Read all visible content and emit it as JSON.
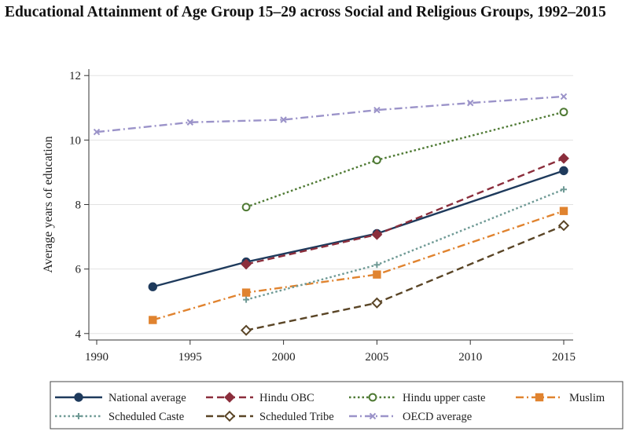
{
  "chart_data": {
    "type": "line",
    "title": "Educational Attainment of Age Group 15–29 across Social and Religious Groups, 1992–2015",
    "xlabel": "",
    "ylabel": "Average years of education",
    "xlim": [
      1990,
      2015
    ],
    "ylim": [
      3.8,
      12.2
    ],
    "xticks": [
      "1990",
      "1995",
      "2000",
      "2005",
      "2010",
      "2015"
    ],
    "yticks": [
      "4",
      "6",
      "8",
      "10",
      "12"
    ],
    "legend_position": "bottom",
    "series": [
      {
        "name": "National average",
        "color": "#1e3a5c",
        "marker": "circle-filled",
        "dash": "solid",
        "x": [
          1993,
          1998,
          2005,
          2015
        ],
        "y": [
          5.45,
          6.22,
          7.1,
          9.05
        ]
      },
      {
        "name": "Hindu OBC",
        "color": "#8b2e3c",
        "marker": "diamond-filled",
        "dash": "dashed",
        "x": [
          1998,
          2005,
          2015
        ],
        "y": [
          6.15,
          7.07,
          9.43
        ]
      },
      {
        "name": "Hindu upper caste",
        "color": "#4f7a34",
        "marker": "circle-open",
        "dash": "dotted",
        "x": [
          1998,
          2005,
          2015
        ],
        "y": [
          7.92,
          9.38,
          10.87
        ]
      },
      {
        "name": "Muslim",
        "color": "#e0832f",
        "marker": "square-filled",
        "dash": "dashdot",
        "x": [
          1993,
          1998,
          2005,
          2015
        ],
        "y": [
          4.42,
          5.27,
          5.83,
          7.8
        ]
      },
      {
        "name": "Scheduled Caste",
        "color": "#6f9a95",
        "marker": "plus",
        "dash": "dotted",
        "x": [
          1998,
          2005,
          2015
        ],
        "y": [
          5.05,
          6.13,
          8.47
        ]
      },
      {
        "name": "Scheduled Tribe",
        "color": "#5a4526",
        "marker": "diamond-open",
        "dash": "dashed",
        "x": [
          1998,
          2005,
          2015
        ],
        "y": [
          4.1,
          4.95,
          7.35
        ]
      },
      {
        "name": "OECD average",
        "color": "#9b93c9",
        "marker": "x",
        "dash": "dashdot",
        "x": [
          1990,
          1995,
          2000,
          2005,
          2010,
          2015
        ],
        "y": [
          10.25,
          10.55,
          10.63,
          10.93,
          11.15,
          11.35
        ]
      }
    ]
  }
}
